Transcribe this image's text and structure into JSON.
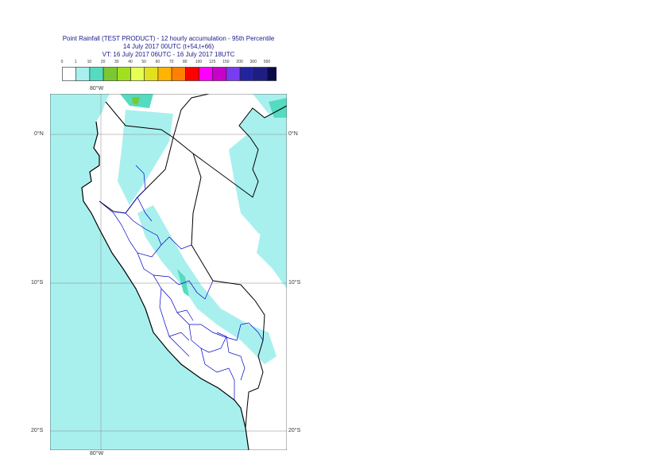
{
  "title": {
    "line1": "Point Rainfall (TEST PRODUCT) - 12 hourly accumulation - 95th Percentile",
    "line2": "14 July 2017 00UTC (t+54,t+66)",
    "line3": "VT: 16 July 2017 06UTC - 16 July 2017 18UTC"
  },
  "legend": {
    "ticks": [
      "0",
      "1",
      "10",
      "20",
      "30",
      "40",
      "50",
      "60",
      "70",
      "80",
      "100",
      "125",
      "150",
      "200",
      "300",
      "500"
    ],
    "colors": [
      "#ffffff",
      "#a8f0ee",
      "#55dbbf",
      "#7cc832",
      "#a0e01e",
      "#e6ff55",
      "#e1e11e",
      "#ffb400",
      "#ff8000",
      "#ff0000",
      "#ff00ff",
      "#c800c8",
      "#7a3cf0",
      "#2323a0",
      "#1e1e82",
      "#0a0a46"
    ]
  },
  "map": {
    "lon_labels": {
      "top": "80°W",
      "bottom": "80°W"
    },
    "lat_labels": [
      "0°N",
      "10°S",
      "20°S"
    ],
    "sea_color": "#a8f0ee",
    "land_color": "#ffffff",
    "border_color": "#000000",
    "region_color": "#0000cc"
  }
}
